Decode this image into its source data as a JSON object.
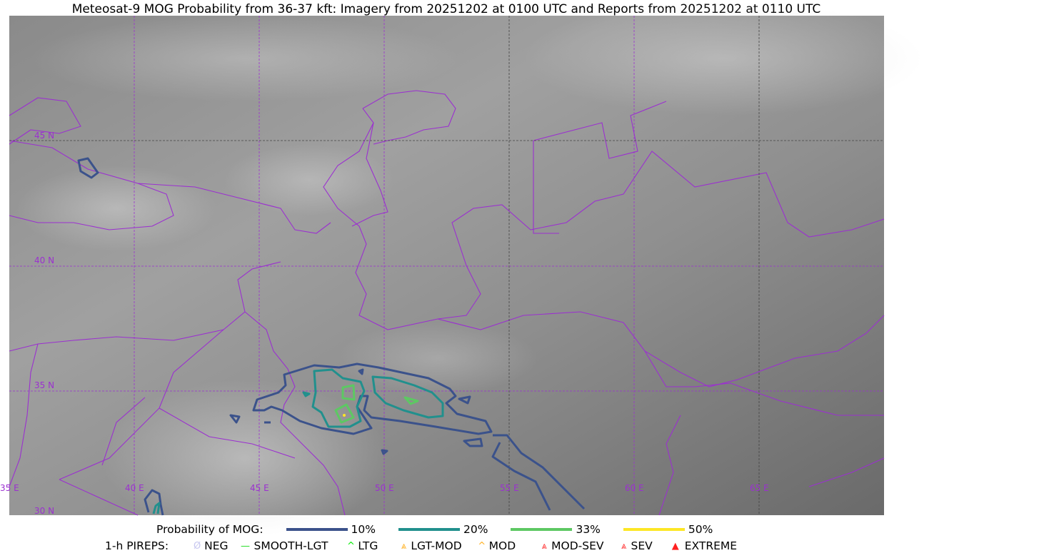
{
  "title": "Meteosat-9 MOG Probability from 36-37 kft: Imagery from 20251202 at 0100 UTC and Reports from 20251202 at 0110 UTC",
  "map": {
    "lon_labels": [
      "35 E",
      "40 E",
      "45 E",
      "50 E",
      "55 E",
      "60 E",
      "65 E"
    ],
    "lat_labels": [
      "45 N",
      "40 N",
      "35 N",
      "30 N"
    ],
    "grid_color": "#9b30d0",
    "border_color": "#9b30d0"
  },
  "legend": {
    "probability_label": "Probability of MOG:",
    "probabilities": [
      {
        "label": "10%",
        "color": "#3b528b"
      },
      {
        "label": "20%",
        "color": "#21908d"
      },
      {
        "label": "33%",
        "color": "#5dc863"
      },
      {
        "label": "50%",
        "color": "#fde725"
      }
    ],
    "pireps_label": "1-h PIREPS:",
    "pireps": [
      {
        "label": "NEG",
        "color": "#c8c8f0",
        "icon": "neg-icon"
      },
      {
        "label": "SMOOTH-LGT",
        "color": "#22dd22",
        "icon": "smooth-lgt-icon"
      },
      {
        "label": "LTG",
        "color": "#00ee00",
        "icon": "ltg-icon"
      },
      {
        "label": "LGT-MOD",
        "color": "#ffb020",
        "icon": "lgt-mod-icon"
      },
      {
        "label": "MOD",
        "color": "#ffb020",
        "icon": "mod-icon"
      },
      {
        "label": "MOD-SEV",
        "color": "#ff3030",
        "icon": "mod-sev-icon"
      },
      {
        "label": "SEV",
        "color": "#ff3030",
        "icon": "sev-icon"
      },
      {
        "label": "EXTREME",
        "color": "#ff2020",
        "icon": "extreme-icon"
      }
    ]
  }
}
